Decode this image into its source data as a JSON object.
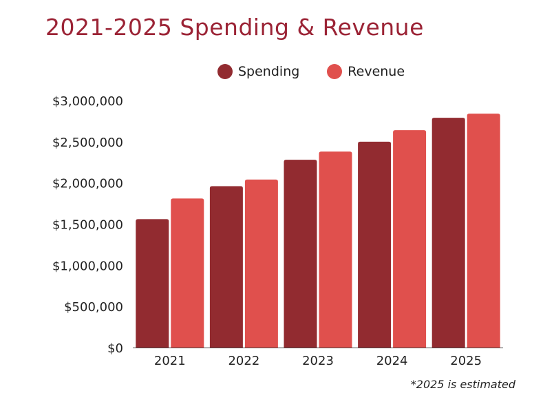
{
  "chart_data": {
    "type": "bar",
    "title": "2021-2025 Spending & Revenue",
    "categories": [
      "2021",
      "2022",
      "2023",
      "2024",
      "2025"
    ],
    "series": [
      {
        "name": "Spending",
        "values": [
          1560000,
          1960000,
          2280000,
          2500000,
          2790000
        ],
        "color": "#922b30"
      },
      {
        "name": "Revenue",
        "values": [
          1810000,
          2040000,
          2380000,
          2640000,
          2840000
        ],
        "color": "#e0504d"
      }
    ],
    "ylim": [
      0,
      3000000
    ],
    "yticks": [
      "$0",
      "$500,000",
      "$1,000,000",
      "$1,500,000",
      "$2,000,000",
      "$2,500,000",
      "$3,000,000"
    ],
    "ytick_values": [
      0,
      500000,
      1000000,
      1500000,
      2000000,
      2500000,
      3000000
    ],
    "grid": false,
    "legend": "top-center",
    "footnote": "*2025 is estimated"
  }
}
